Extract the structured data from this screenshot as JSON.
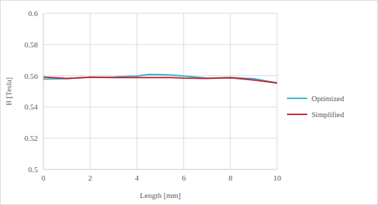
{
  "chart_data": {
    "type": "line",
    "x_label": "Length [mm]",
    "y_label": "B [Tesla]",
    "x": [
      0,
      1,
      2,
      3,
      4,
      4.5,
      5,
      5.5,
      6,
      7,
      8,
      9,
      10
    ],
    "series": [
      {
        "name": "Optimized",
        "color": "#2eb2d6",
        "values": [
          0.5578,
          0.5582,
          0.559,
          0.5592,
          0.5598,
          0.5608,
          0.5607,
          0.5605,
          0.5598,
          0.5585,
          0.5588,
          0.5582,
          0.5553
        ]
      },
      {
        "name": "Simplified",
        "color": "#c8232c",
        "values": [
          0.5592,
          0.5583,
          0.559,
          0.5588,
          0.5588,
          0.5588,
          0.5588,
          0.5588,
          0.5585,
          0.5583,
          0.5587,
          0.5573,
          0.5553
        ]
      }
    ],
    "xlim": [
      0,
      10
    ],
    "xticks": [
      0,
      2,
      4,
      6,
      8,
      10
    ],
    "ylim": [
      0.5,
      0.6
    ],
    "yticks": [
      0.5,
      0.52,
      0.54,
      0.56,
      0.58,
      0.6
    ],
    "grid": true,
    "legend": "right"
  }
}
